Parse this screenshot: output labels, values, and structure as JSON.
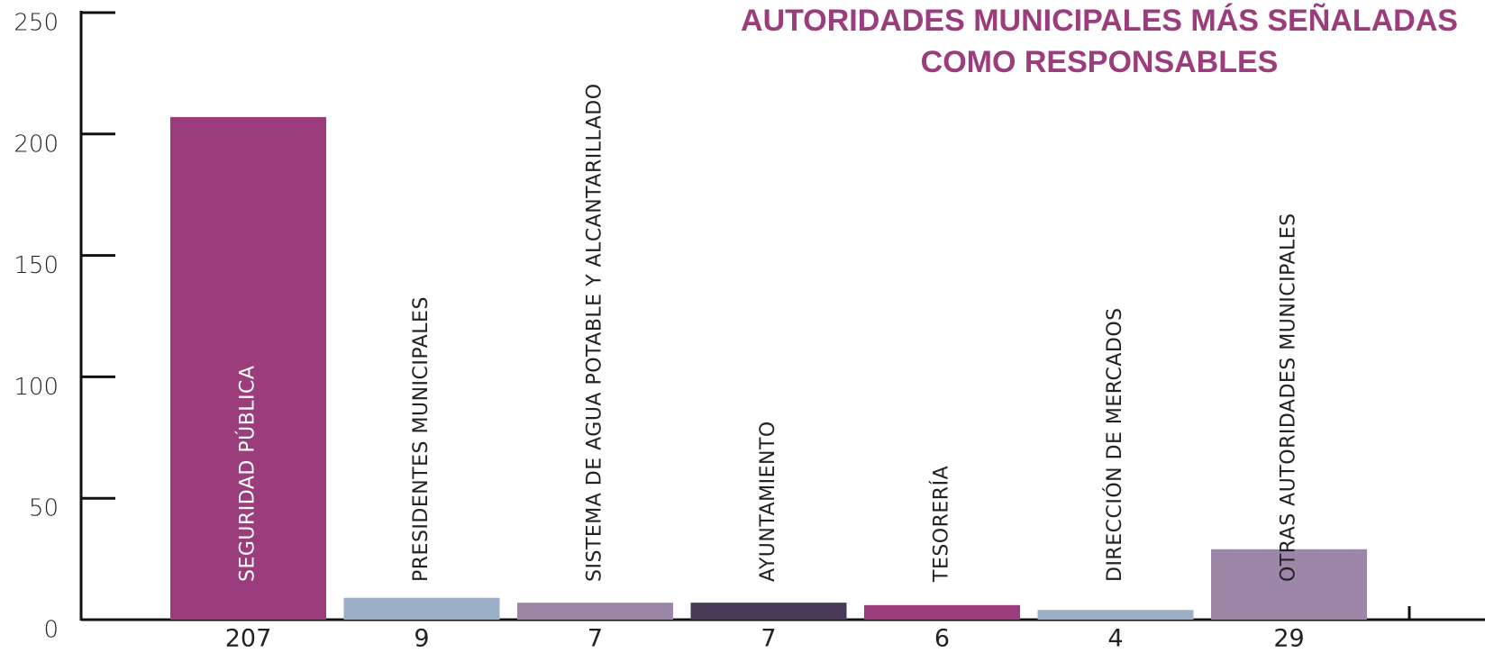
{
  "chart_data": {
    "type": "bar",
    "title": [
      "AUTORIDADES MUNICIPALES MÁS SEÑALADAS",
      "COMO RESPONSABLES"
    ],
    "categories": [
      "SEGURIDAD PÚBLICA",
      "PRESIDENTES MUNICIPALES",
      "SISTEMA DE AGUA POTABLE Y ALCANTARILLADO",
      "AYUNTAMIENTO",
      "TESORERÍA",
      "DIRECCIÓN DE MERCADOS",
      "OTRAS AUTORIDADES MUNICIPALES"
    ],
    "values": [
      207,
      9,
      7,
      7,
      6,
      4,
      29
    ],
    "colors": [
      "#9b3d7c",
      "#9bb0c6",
      "#9d87a9",
      "#4a3a5a",
      "#9b3d7c",
      "#9bb0c6",
      "#9d87a9"
    ],
    "ylim": [
      0,
      250
    ],
    "yticks": [
      0,
      50,
      100,
      150,
      200,
      250
    ]
  }
}
